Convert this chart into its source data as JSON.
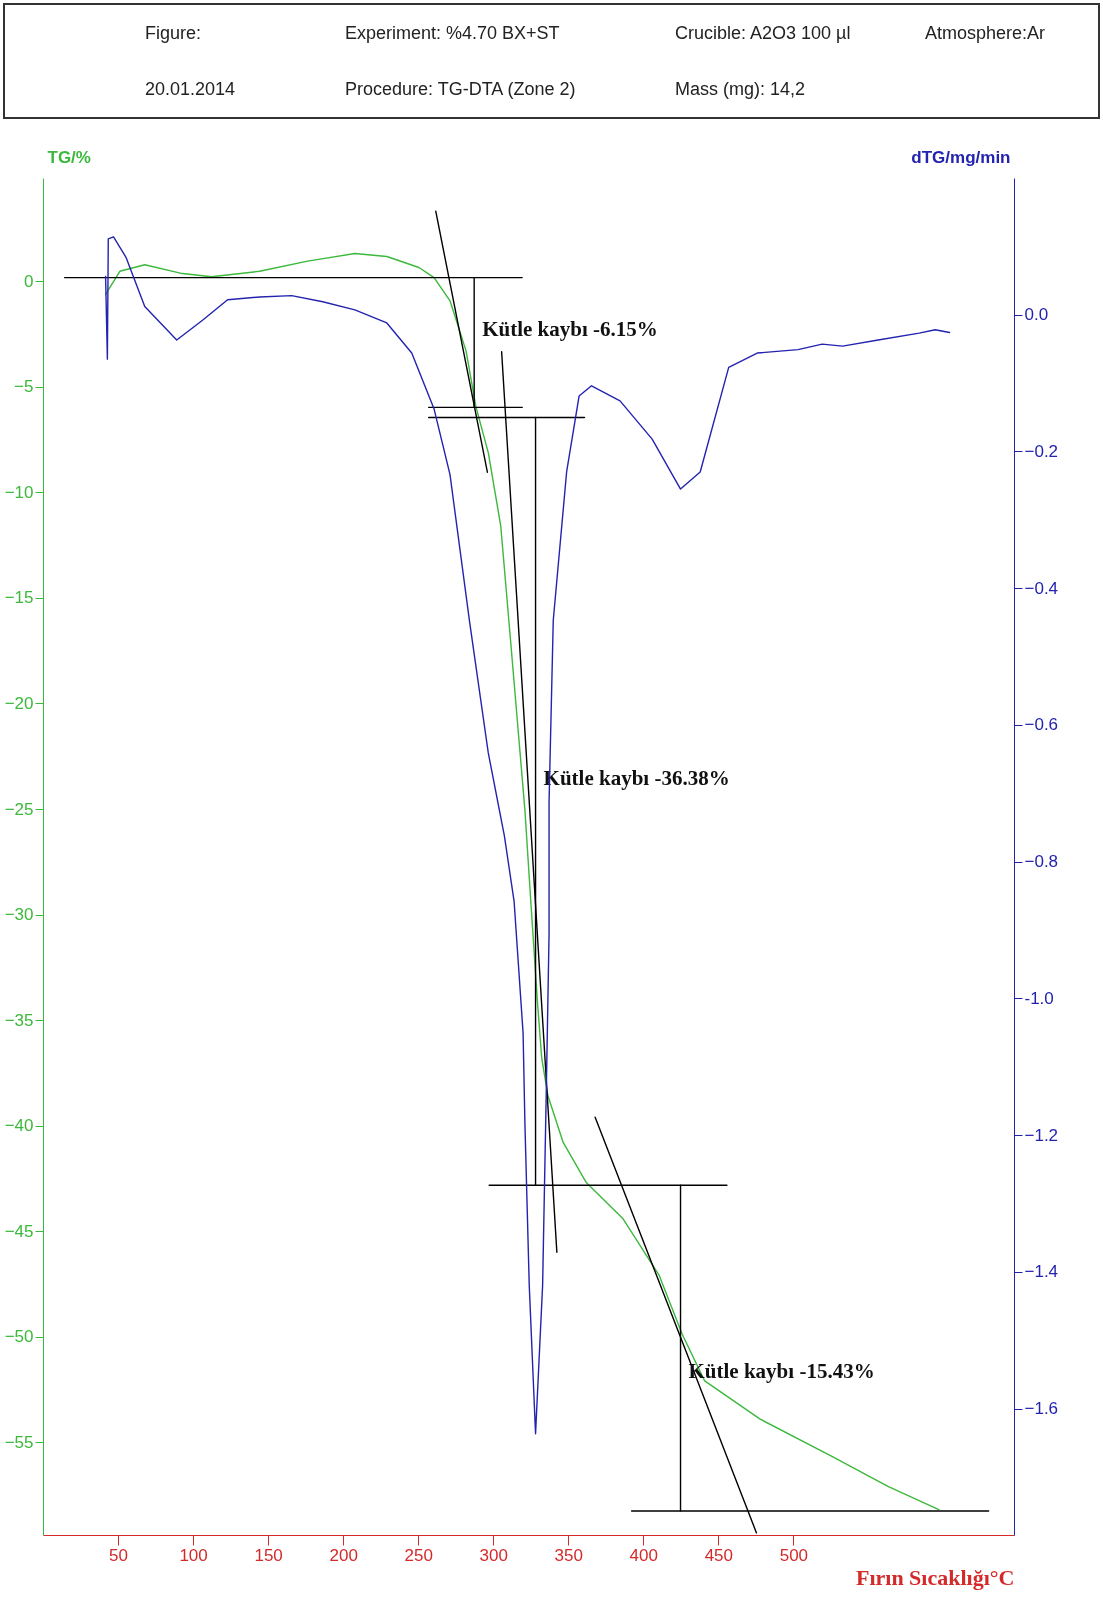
{
  "chart_data": {
    "type": "line",
    "xlabel": "Fırın Sıcaklığı°C",
    "ylabel": "TG/%",
    "y2label": "dTG/mg/min",
    "xlim": [
      0,
      647
    ],
    "xticks": [
      50,
      100,
      150,
      200,
      250,
      300,
      350,
      400,
      450,
      500
    ],
    "ylim": [
      -59.4,
      4.9
    ],
    "yticks": [
      0,
      -5,
      -10,
      -15,
      -20,
      -25,
      -30,
      -35,
      -40,
      -45,
      -50,
      -55
    ],
    "y2lim": [
      -1.785,
      0.2
    ],
    "y2ticks": [
      {
        "value": 0,
        "label": "0.0"
      },
      -0.2,
      -0.4,
      -0.6,
      -0.8,
      {
        "value": -1,
        "label": "-1.0"
      },
      -1.2,
      -1.4,
      -1.6
    ],
    "series": [
      {
        "color": "#3cb83c",
        "x": [
          41.7,
          51.2,
          67.8,
          91.5,
          112.3,
          144.3,
          176.3,
          207.8,
          229.1,
          250.5,
          260.6,
          271.2,
          281.9,
          288.4,
          296.7,
          305.0,
          311.6,
          321.1,
          325.2,
          329.4,
          332.3,
          336.5,
          346.6,
          362.0,
          386.3,
          410.6,
          426.0,
          440.9,
          477.6,
          526.3,
          563.0,
          596.9
        ],
        "values": [
          -0.61,
          0.48,
          0.79,
          0.39,
          0.22,
          0.48,
          0.96,
          1.32,
          1.18,
          0.66,
          0.18,
          -0.92,
          -3.29,
          -5.92,
          -8.11,
          -11.58,
          -17.06,
          -25.04,
          -29.56,
          -34.08,
          -36.8,
          -38.6,
          -40.8,
          -42.7,
          -44.4,
          -47.1,
          -49.9,
          -52.1,
          -53.9,
          -55.7,
          -57.1,
          -58.2
        ]
      },
      {
        "color": "#2323b0",
        "axis": "y2",
        "x": [
          41.7,
          42.9,
          43.5,
          47.0,
          55.3,
          67.8,
          89.1,
          106.3,
          123.0,
          144.3,
          165.7,
          186.4,
          207.8,
          229.1,
          245.7,
          260.6,
          271.2,
          284.3,
          296.7,
          307.4,
          313.9,
          319.9,
          321.1,
          324.0,
          328.2,
          332.9,
          335.3,
          337.2,
          337.2,
          340.0,
          348.9,
          357.2,
          365.5,
          384.5,
          405.9,
          424.8,
          437.9,
          456.9,
          475.9,
          503.1,
          519.2,
          532.8,
          556.5,
          583.8,
          594.5,
          604.0
        ],
        "values": [
          0.056,
          -0.065,
          0.111,
          0.114,
          0.084,
          0.012,
          -0.037,
          -0.008,
          0.022,
          0.026,
          0.028,
          0.019,
          0.007,
          -0.012,
          -0.056,
          -0.138,
          -0.234,
          -0.45,
          -0.641,
          -0.762,
          -0.858,
          -1.051,
          -1.182,
          -1.42,
          -1.637,
          -1.42,
          -1.142,
          -0.906,
          -0.713,
          -0.447,
          -0.23,
          -0.119,
          -0.104,
          -0.126,
          -0.182,
          -0.255,
          -0.23,
          -0.077,
          -0.056,
          -0.051,
          -0.043,
          -0.046,
          -0.037,
          -0.027,
          -0.022,
          -0.026
        ]
      },
      {
        "color": "#000000",
        "x": [
          14.4,
          319.3
        ],
        "values": [
          0.18,
          0.18
        ]
      },
      {
        "color": "#000000",
        "x": [
          257.0,
          319.3
        ],
        "values": [
          -5.97,
          -5.97
        ]
      },
      {
        "color": "#000000",
        "x": [
          257.0,
          360.8
        ],
        "values": [
          -6.45,
          -6.45
        ]
      },
      {
        "color": "#000000",
        "x": [
          297.3,
          455.7
        ],
        "values": [
          -42.83,
          -42.83
        ]
      },
      {
        "color": "#000000",
        "x": [
          392.2,
          630.1
        ],
        "values": [
          -58.26,
          -58.26
        ]
      },
      {
        "color": "#000000",
        "x": [
          261.7,
          296.1
        ],
        "values": [
          3.33,
          -9.04
        ]
      },
      {
        "color": "#000000",
        "x": [
          305.6,
          342.4
        ],
        "values": [
          -3.33,
          -46.0
        ]
      },
      {
        "color": "#000000",
        "x": [
          367.9,
          475.4
        ],
        "values": [
          -39.6,
          -59.3
        ]
      },
      {
        "color": "#000000",
        "x": [
          287.3,
          287.3
        ],
        "values": [
          0.18,
          -5.97
        ]
      },
      {
        "color": "#000000",
        "x": [
          328.2,
          328.2
        ],
        "values": [
          -6.45,
          -42.83
        ]
      },
      {
        "color": "#000000",
        "x": [
          424.8,
          424.8
        ],
        "values": [
          -42.83,
          -58.26
        ]
      }
    ],
    "annotations": [
      "Figure:",
      "Experiment: %4.70 BX+ST",
      "Crucible: A2O3 100 µl",
      "Atmosphere:Ar",
      "20.01.2014",
      "Procedure: TG-DTA (Zone 2)",
      "Mass (mg): 14,2",
      {
        "text": "Kütle kaybı -6.15%",
        "x": 287.3,
        "y": -2.3
      },
      {
        "text": "Kütle kaybı -36.38%",
        "x": 328.2,
        "y": -23.6
      },
      {
        "text": "Kütle kaybı -15.43%",
        "x": 424.8,
        "y": -51.7
      }
    ]
  }
}
